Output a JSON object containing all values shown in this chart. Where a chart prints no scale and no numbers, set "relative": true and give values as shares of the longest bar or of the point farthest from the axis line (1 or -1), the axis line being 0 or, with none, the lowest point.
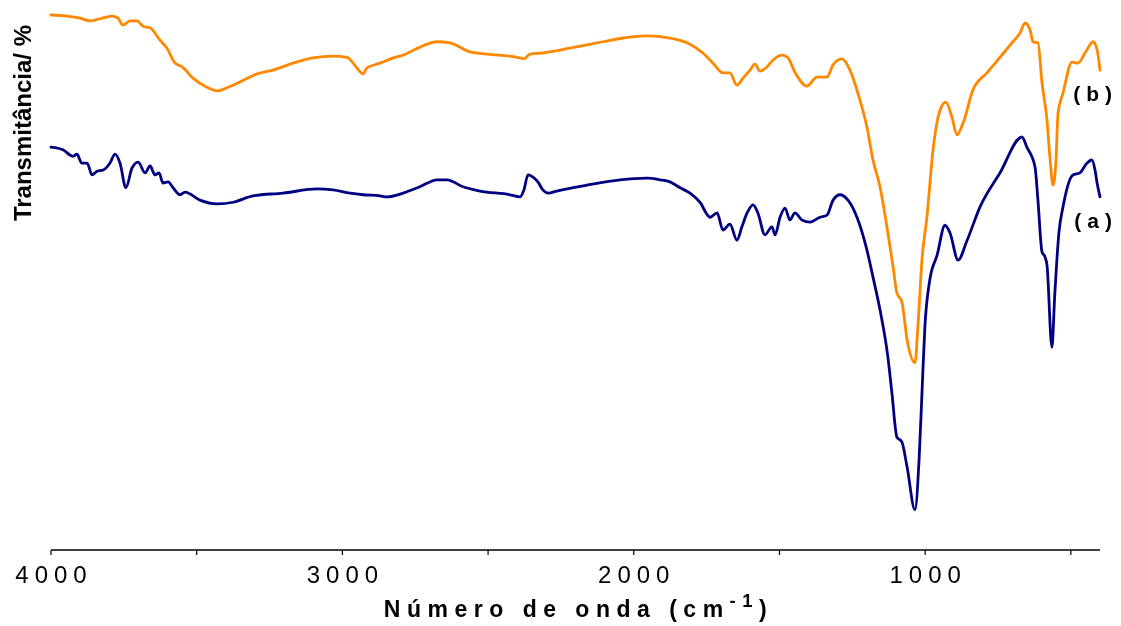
{
  "chart_data": {
    "type": "line",
    "xlabel": "Número de onda (cm$^{-1}$)",
    "ylabel": "Transmitância/ %",
    "relative": true,
    "xlim": [
      4000,
      400
    ],
    "xticks": [
      4000,
      {
        "value": 3500,
        "label": null
      },
      3000,
      {
        "value": 2500,
        "label": null
      },
      2000,
      {
        "value": 1500,
        "label": null
      },
      1000,
      {
        "value": 500,
        "label": null
      }
    ],
    "series": [
      {
        "name": "(a)",
        "color": "#000080",
        "x": [
          4000,
          3959,
          3924,
          3911,
          3894,
          3876,
          3859,
          3842,
          3822,
          3798,
          3780,
          3763,
          3743,
          3722,
          3701,
          3677,
          3660,
          3643,
          3629,
          3616,
          3598,
          3581,
          3557,
          3540,
          3489,
          3430,
          3375,
          3307,
          3204,
          3087,
          3032,
          2974,
          2929,
          2871,
          2847,
          2792,
          2734,
          2675,
          2641,
          2586,
          2528,
          2425,
          2391,
          2377,
          2363,
          2346,
          2329,
          2312,
          2294,
          2264,
          2161,
          2047,
          1955,
          1910,
          1876,
          1841,
          1807,
          1773,
          1738,
          1714,
          1694,
          1670,
          1646,
          1629,
          1611,
          1591,
          1574,
          1550,
          1526,
          1515,
          1498,
          1481,
          1464,
          1447,
          1423,
          1395,
          1361,
          1337,
          1316,
          1292,
          1265,
          1234,
          1200,
          1179,
          1155,
          1128,
          1114,
          1097,
          1080,
          1062,
          1035,
          1021,
          1011,
          1001,
          984,
          959,
          932,
          915,
          887,
          856,
          812,
          743,
          668,
          651,
          623,
          613,
          599,
          589,
          582,
          565,
          555,
          548,
          541,
          527,
          493,
          469,
          445,
          428,
          417,
          410,
          400
        ],
        "values": [
          0.753,
          0.748,
          0.736,
          0.74,
          0.723,
          0.723,
          0.701,
          0.708,
          0.71,
          0.723,
          0.74,
          0.723,
          0.677,
          0.714,
          0.725,
          0.705,
          0.718,
          0.701,
          0.705,
          0.686,
          0.688,
          0.677,
          0.664,
          0.669,
          0.654,
          0.647,
          0.65,
          0.662,
          0.667,
          0.675,
          0.673,
          0.667,
          0.664,
          0.662,
          0.66,
          0.667,
          0.679,
          0.692,
          0.692,
          0.679,
          0.671,
          0.664,
          0.66,
          0.673,
          0.701,
          0.697,
          0.688,
          0.673,
          0.667,
          0.671,
          0.682,
          0.692,
          0.695,
          0.692,
          0.688,
          0.677,
          0.667,
          0.65,
          0.622,
          0.63,
          0.598,
          0.609,
          0.579,
          0.604,
          0.63,
          0.645,
          0.63,
          0.589,
          0.604,
          0.589,
          0.622,
          0.639,
          0.617,
          0.63,
          0.617,
          0.613,
          0.622,
          0.626,
          0.654,
          0.664,
          0.654,
          0.622,
          0.561,
          0.51,
          0.449,
          0.361,
          0.293,
          0.211,
          0.202,
          0.155,
          0.075,
          0.168,
          0.293,
          0.417,
          0.505,
          0.551,
          0.607,
          0.593,
          0.542,
          0.579,
          0.641,
          0.705,
          0.772,
          0.753,
          0.716,
          0.654,
          0.557,
          0.548,
          0.533,
          0.379,
          0.48,
          0.542,
          0.593,
          0.641,
          0.701,
          0.705,
          0.723,
          0.729,
          0.71,
          0.686,
          0.66
        ]
      },
      {
        "name": "(b)",
        "color": "#ff8800",
        "x": [
          4000,
          3945,
          3900,
          3866,
          3832,
          3791,
          3770,
          3753,
          3729,
          3705,
          3684,
          3660,
          3626,
          3602,
          3574,
          3550,
          3513,
          3465,
          3430,
          3396,
          3351,
          3293,
          3238,
          3169,
          3101,
          3032,
          2984,
          2950,
          2929,
          2916,
          2871,
          2826,
          2792,
          2734,
          2675,
          2631,
          2562,
          2504,
          2391,
          2377,
          2356,
          2312,
          2219,
          2106,
          2037,
          1955,
          1876,
          1817,
          1763,
          1728,
          1694,
          1670,
          1646,
          1625,
          1601,
          1584,
          1567,
          1543,
          1522,
          1491,
          1471,
          1447,
          1406,
          1371,
          1337,
          1316,
          1286,
          1258,
          1231,
          1200,
          1179,
          1155,
          1128,
          1110,
          1097,
          1080,
          1062,
          1035,
          1025,
          1011,
          994,
          973,
          949,
          929,
          908,
          891,
          870,
          836,
          788,
          743,
          699,
          675,
          657,
          640,
          630,
          613,
          599,
          582,
          572,
          561,
          551,
          544,
          527,
          496,
          476,
          445,
          424,
          410,
          400
        ],
        "values": [
          1.0,
          0.998,
          0.994,
          0.989,
          0.993,
          0.998,
          0.994,
          0.981,
          0.989,
          0.989,
          0.979,
          0.976,
          0.953,
          0.938,
          0.91,
          0.903,
          0.882,
          0.865,
          0.858,
          0.864,
          0.875,
          0.89,
          0.897,
          0.91,
          0.92,
          0.923,
          0.921,
          0.901,
          0.89,
          0.901,
          0.91,
          0.92,
          0.925,
          0.94,
          0.95,
          0.948,
          0.931,
          0.927,
          0.92,
          0.918,
          0.927,
          0.929,
          0.938,
          0.95,
          0.957,
          0.961,
          0.957,
          0.948,
          0.929,
          0.91,
          0.892,
          0.892,
          0.869,
          0.882,
          0.897,
          0.908,
          0.895,
          0.903,
          0.916,
          0.925,
          0.92,
          0.893,
          0.867,
          0.884,
          0.884,
          0.907,
          0.918,
          0.897,
          0.854,
          0.791,
          0.729,
          0.679,
          0.593,
          0.529,
          0.48,
          0.464,
          0.393,
          0.35,
          0.417,
          0.542,
          0.622,
          0.748,
          0.822,
          0.837,
          0.809,
          0.776,
          0.798,
          0.86,
          0.892,
          0.921,
          0.95,
          0.966,
          0.985,
          0.972,
          0.95,
          0.948,
          0.873,
          0.804,
          0.735,
          0.682,
          0.729,
          0.817,
          0.854,
          0.912,
          0.91,
          0.935,
          0.95,
          0.935,
          0.897
        ]
      }
    ]
  }
}
